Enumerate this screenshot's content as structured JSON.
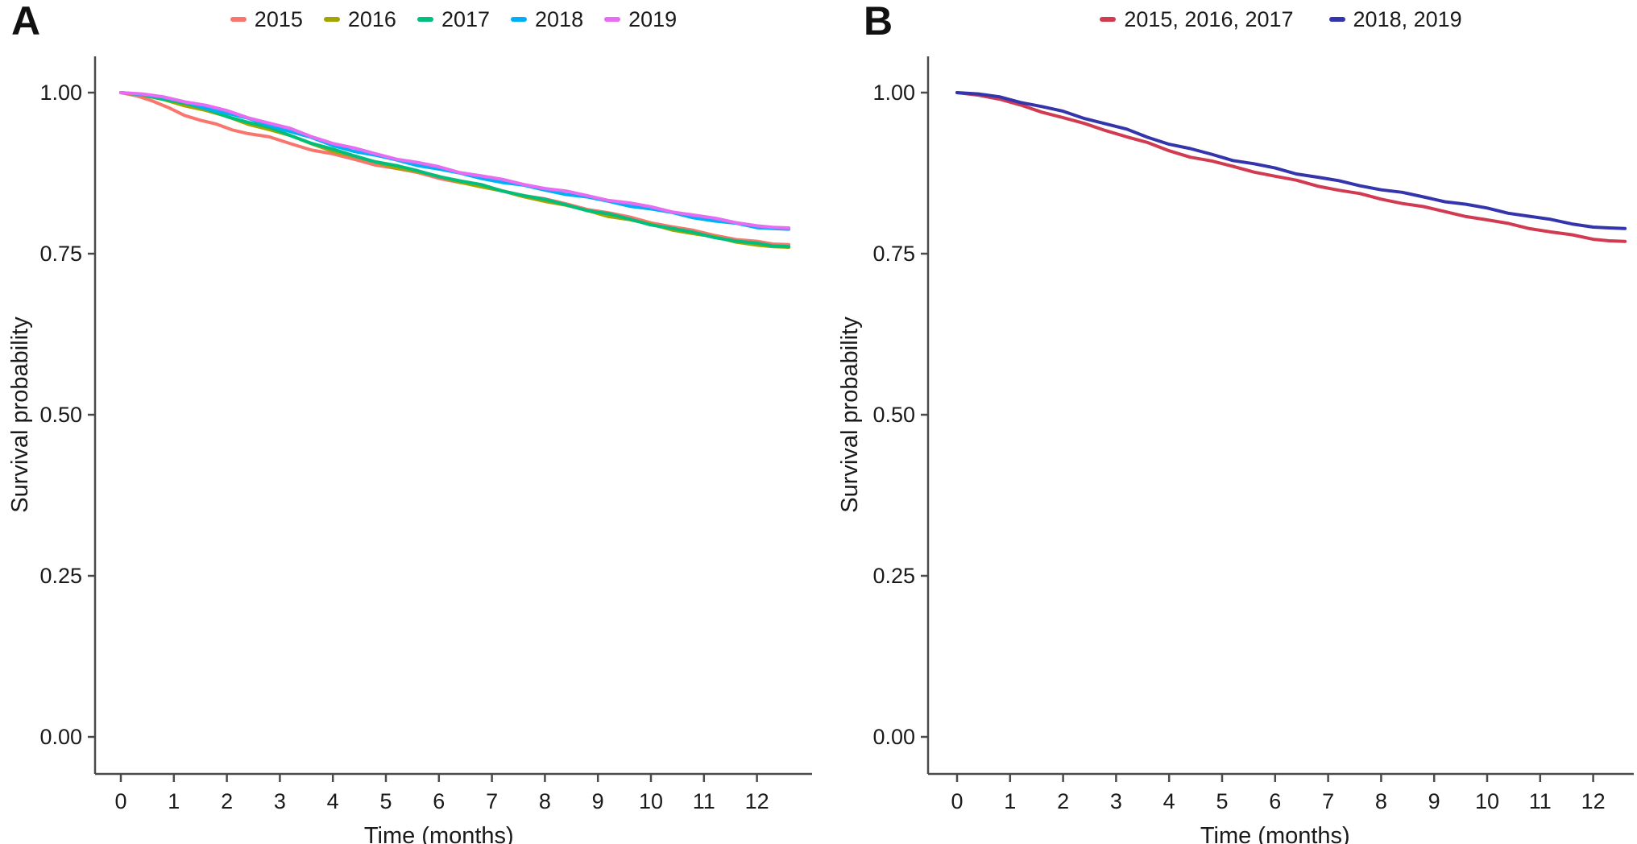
{
  "figure": {
    "background": "#ffffff",
    "text_color": "#1a1a1a",
    "axis_color": "#4a4a4a"
  },
  "chart_data": [
    {
      "id": "A",
      "panel_label": "A",
      "type": "line",
      "subtype": "kaplan-meier-survival",
      "xlabel": "Time (months)",
      "ylabel": "Survival probability",
      "xlim": [
        0,
        12.75
      ],
      "ylim": [
        0,
        1.05
      ],
      "grid": false,
      "legend_position": "top",
      "x_ticks": [
        "0",
        "1",
        "2",
        "3",
        "4",
        "5",
        "6",
        "7",
        "8",
        "9",
        "10",
        "11",
        "12"
      ],
      "x_tick_values": [
        0,
        1,
        2,
        3,
        4,
        5,
        6,
        7,
        8,
        9,
        10,
        11,
        12
      ],
      "y_ticks": [
        "1.00",
        "0.75",
        "0.50",
        "0.25",
        "0.00"
      ],
      "y_tick_values": [
        1.0,
        0.75,
        0.5,
        0.25,
        0.0
      ],
      "series": [
        {
          "name": "2015",
          "color": "#F8766D",
          "points": [
            [
              0,
              1.0
            ],
            [
              0.3,
              0.995
            ],
            [
              0.6,
              0.986
            ],
            [
              0.9,
              0.976
            ],
            [
              1.2,
              0.966
            ],
            [
              1.5,
              0.957
            ],
            [
              1.8,
              0.95
            ],
            [
              2.1,
              0.943
            ],
            [
              2.4,
              0.937
            ],
            [
              2.8,
              0.93
            ],
            [
              3.2,
              0.921
            ],
            [
              3.6,
              0.912
            ],
            [
              4.0,
              0.904
            ],
            [
              4.4,
              0.896
            ],
            [
              4.8,
              0.889
            ],
            [
              5.2,
              0.882
            ],
            [
              5.6,
              0.875
            ],
            [
              6.0,
              0.868
            ],
            [
              6.4,
              0.861
            ],
            [
              6.8,
              0.855
            ],
            [
              7.2,
              0.848
            ],
            [
              7.6,
              0.841
            ],
            [
              8.0,
              0.834
            ],
            [
              8.4,
              0.827
            ],
            [
              8.8,
              0.82
            ],
            [
              9.2,
              0.813
            ],
            [
              9.6,
              0.806
            ],
            [
              10.0,
              0.799
            ],
            [
              10.4,
              0.792
            ],
            [
              10.8,
              0.785
            ],
            [
              11.2,
              0.779
            ],
            [
              11.6,
              0.773
            ],
            [
              12.0,
              0.768
            ],
            [
              12.3,
              0.765
            ],
            [
              12.6,
              0.764
            ]
          ]
        },
        {
          "name": "2016",
          "color": "#A3A500",
          "points": [
            [
              0,
              1.0
            ],
            [
              0.4,
              0.996
            ],
            [
              0.8,
              0.989
            ],
            [
              1.2,
              0.981
            ],
            [
              1.6,
              0.972
            ],
            [
              2.0,
              0.962
            ],
            [
              2.4,
              0.952
            ],
            [
              2.8,
              0.943
            ],
            [
              3.2,
              0.932
            ],
            [
              3.6,
              0.921
            ],
            [
              4.0,
              0.91
            ],
            [
              4.4,
              0.9
            ],
            [
              4.8,
              0.892
            ],
            [
              5.2,
              0.884
            ],
            [
              5.6,
              0.877
            ],
            [
              6.0,
              0.869
            ],
            [
              6.4,
              0.862
            ],
            [
              6.8,
              0.854
            ],
            [
              7.2,
              0.846
            ],
            [
              7.6,
              0.839
            ],
            [
              8.0,
              0.832
            ],
            [
              8.4,
              0.824
            ],
            [
              8.8,
              0.817
            ],
            [
              9.2,
              0.809
            ],
            [
              9.6,
              0.802
            ],
            [
              10.0,
              0.795
            ],
            [
              10.4,
              0.788
            ],
            [
              10.8,
              0.781
            ],
            [
              11.2,
              0.775
            ],
            [
              11.6,
              0.769
            ],
            [
              12.0,
              0.764
            ],
            [
              12.3,
              0.761
            ],
            [
              12.6,
              0.76
            ]
          ]
        },
        {
          "name": "2017",
          "color": "#00BF7D",
          "points": [
            [
              0,
              1.0
            ],
            [
              0.4,
              0.997
            ],
            [
              0.8,
              0.991
            ],
            [
              1.2,
              0.983
            ],
            [
              1.6,
              0.974
            ],
            [
              2.0,
              0.964
            ],
            [
              2.4,
              0.954
            ],
            [
              2.8,
              0.945
            ],
            [
              3.2,
              0.934
            ],
            [
              3.6,
              0.922
            ],
            [
              4.0,
              0.911
            ],
            [
              4.4,
              0.902
            ],
            [
              4.8,
              0.894
            ],
            [
              5.2,
              0.886
            ],
            [
              5.6,
              0.878
            ],
            [
              6.0,
              0.871
            ],
            [
              6.4,
              0.863
            ],
            [
              6.8,
              0.856
            ],
            [
              7.2,
              0.848
            ],
            [
              7.6,
              0.841
            ],
            [
              8.0,
              0.833
            ],
            [
              8.4,
              0.826
            ],
            [
              8.8,
              0.818
            ],
            [
              9.2,
              0.811
            ],
            [
              9.6,
              0.803
            ],
            [
              10.0,
              0.796
            ],
            [
              10.4,
              0.789
            ],
            [
              10.8,
              0.782
            ],
            [
              11.2,
              0.776
            ],
            [
              11.6,
              0.77
            ],
            [
              12.0,
              0.765
            ],
            [
              12.3,
              0.762
            ],
            [
              12.6,
              0.761
            ]
          ]
        },
        {
          "name": "2018",
          "color": "#00B0F6",
          "points": [
            [
              0,
              1.0
            ],
            [
              0.4,
              0.997
            ],
            [
              0.8,
              0.992
            ],
            [
              1.2,
              0.985
            ],
            [
              1.6,
              0.977
            ],
            [
              2.0,
              0.968
            ],
            [
              2.4,
              0.959
            ],
            [
              2.8,
              0.95
            ],
            [
              3.2,
              0.94
            ],
            [
              3.6,
              0.929
            ],
            [
              4.0,
              0.918
            ],
            [
              4.4,
              0.91
            ],
            [
              4.8,
              0.902
            ],
            [
              5.2,
              0.895
            ],
            [
              5.6,
              0.888
            ],
            [
              6.0,
              0.881
            ],
            [
              6.4,
              0.874
            ],
            [
              6.8,
              0.868
            ],
            [
              7.2,
              0.861
            ],
            [
              7.6,
              0.855
            ],
            [
              8.0,
              0.849
            ],
            [
              8.4,
              0.843
            ],
            [
              8.8,
              0.837
            ],
            [
              9.2,
              0.831
            ],
            [
              9.6,
              0.825
            ],
            [
              10.0,
              0.819
            ],
            [
              10.4,
              0.813
            ],
            [
              10.8,
              0.807
            ],
            [
              11.2,
              0.801
            ],
            [
              11.6,
              0.796
            ],
            [
              12.0,
              0.791
            ],
            [
              12.3,
              0.789
            ],
            [
              12.6,
              0.788
            ]
          ]
        },
        {
          "name": "2019",
          "color": "#E76BF3",
          "points": [
            [
              0,
              1.0
            ],
            [
              0.4,
              0.998
            ],
            [
              0.8,
              0.993
            ],
            [
              1.2,
              0.987
            ],
            [
              1.6,
              0.98
            ],
            [
              2.0,
              0.971
            ],
            [
              2.4,
              0.962
            ],
            [
              2.8,
              0.953
            ],
            [
              3.2,
              0.943
            ],
            [
              3.6,
              0.932
            ],
            [
              4.0,
              0.922
            ],
            [
              4.4,
              0.913
            ],
            [
              4.8,
              0.905
            ],
            [
              5.2,
              0.898
            ],
            [
              5.6,
              0.891
            ],
            [
              6.0,
              0.884
            ],
            [
              6.4,
              0.877
            ],
            [
              6.8,
              0.871
            ],
            [
              7.2,
              0.864
            ],
            [
              7.6,
              0.858
            ],
            [
              8.0,
              0.852
            ],
            [
              8.4,
              0.846
            ],
            [
              8.8,
              0.84
            ],
            [
              9.2,
              0.834
            ],
            [
              9.6,
              0.828
            ],
            [
              10.0,
              0.822
            ],
            [
              10.4,
              0.816
            ],
            [
              10.8,
              0.81
            ],
            [
              11.2,
              0.804
            ],
            [
              11.6,
              0.799
            ],
            [
              12.0,
              0.794
            ],
            [
              12.3,
              0.791
            ],
            [
              12.6,
              0.79
            ]
          ]
        }
      ]
    },
    {
      "id": "B",
      "panel_label": "B",
      "type": "line",
      "subtype": "kaplan-meier-survival",
      "xlabel": "Time (months)",
      "ylabel": "Survival probability",
      "xlim": [
        0,
        12.75
      ],
      "ylim": [
        0,
        1.05
      ],
      "grid": false,
      "legend_position": "top",
      "x_ticks": [
        "0",
        "1",
        "2",
        "3",
        "4",
        "5",
        "6",
        "7",
        "8",
        "9",
        "10",
        "11",
        "12"
      ],
      "x_tick_values": [
        0,
        1,
        2,
        3,
        4,
        5,
        6,
        7,
        8,
        9,
        10,
        11,
        12
      ],
      "y_ticks": [
        "1.00",
        "0.75",
        "0.50",
        "0.25",
        "0.00"
      ],
      "y_tick_values": [
        1.0,
        0.75,
        0.5,
        0.25,
        0.0
      ],
      "series": [
        {
          "name": "2015, 2016, 2017",
          "color": "#D13B52",
          "points": [
            [
              0,
              1.0
            ],
            [
              0.4,
              0.996
            ],
            [
              0.8,
              0.989
            ],
            [
              1.2,
              0.98
            ],
            [
              1.6,
              0.971
            ],
            [
              2.0,
              0.961
            ],
            [
              2.4,
              0.951
            ],
            [
              2.8,
              0.942
            ],
            [
              3.2,
              0.932
            ],
            [
              3.6,
              0.921
            ],
            [
              4.0,
              0.91
            ],
            [
              4.4,
              0.901
            ],
            [
              4.8,
              0.893
            ],
            [
              5.2,
              0.885
            ],
            [
              5.6,
              0.878
            ],
            [
              6.0,
              0.87
            ],
            [
              6.4,
              0.863
            ],
            [
              6.8,
              0.856
            ],
            [
              7.2,
              0.849
            ],
            [
              7.6,
              0.842
            ],
            [
              8.0,
              0.835
            ],
            [
              8.4,
              0.829
            ],
            [
              8.8,
              0.822
            ],
            [
              9.2,
              0.815
            ],
            [
              9.6,
              0.809
            ],
            [
              10.0,
              0.802
            ],
            [
              10.4,
              0.796
            ],
            [
              10.8,
              0.79
            ],
            [
              11.2,
              0.784
            ],
            [
              11.6,
              0.778
            ],
            [
              12.0,
              0.773
            ],
            [
              12.3,
              0.77
            ],
            [
              12.6,
              0.769
            ]
          ]
        },
        {
          "name": "2018, 2019",
          "color": "#3434AC",
          "points": [
            [
              0,
              1.0
            ],
            [
              0.4,
              0.998
            ],
            [
              0.8,
              0.993
            ],
            [
              1.2,
              0.986
            ],
            [
              1.6,
              0.978
            ],
            [
              2.0,
              0.97
            ],
            [
              2.4,
              0.961
            ],
            [
              2.8,
              0.952
            ],
            [
              3.2,
              0.942
            ],
            [
              3.6,
              0.931
            ],
            [
              4.0,
              0.921
            ],
            [
              4.4,
              0.912
            ],
            [
              4.8,
              0.904
            ],
            [
              5.2,
              0.896
            ],
            [
              5.6,
              0.889
            ],
            [
              6.0,
              0.882
            ],
            [
              6.4,
              0.875
            ],
            [
              6.8,
              0.869
            ],
            [
              7.2,
              0.862
            ],
            [
              7.6,
              0.856
            ],
            [
              8.0,
              0.85
            ],
            [
              8.4,
              0.844
            ],
            [
              8.8,
              0.838
            ],
            [
              9.2,
              0.832
            ],
            [
              9.6,
              0.826
            ],
            [
              10.0,
              0.82
            ],
            [
              10.4,
              0.814
            ],
            [
              10.8,
              0.808
            ],
            [
              11.2,
              0.802
            ],
            [
              11.6,
              0.797
            ],
            [
              12.0,
              0.792
            ],
            [
              12.3,
              0.79
            ],
            [
              12.6,
              0.789
            ]
          ]
        }
      ]
    }
  ]
}
